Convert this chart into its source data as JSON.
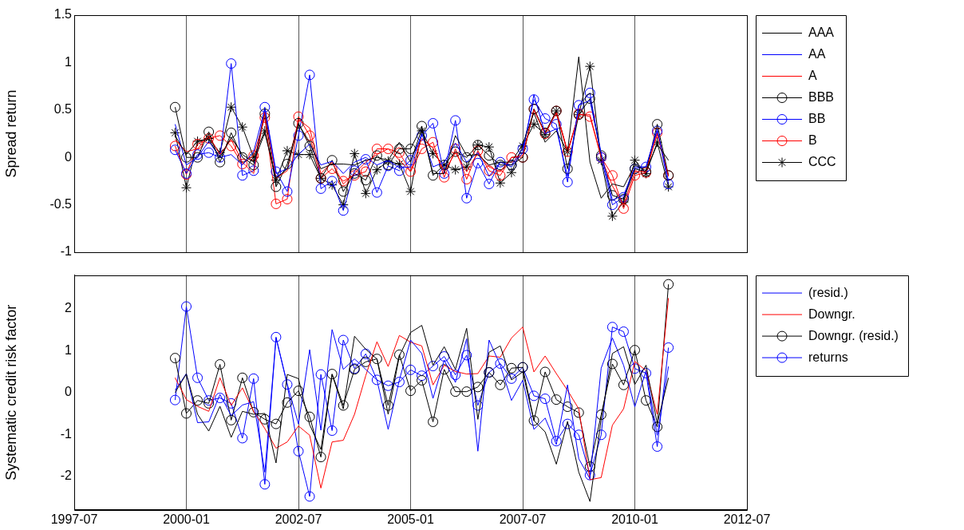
{
  "chart_data": [
    {
      "type": "line",
      "ylabel": "Spread return",
      "legend": "top right",
      "grid": "x",
      "tick_labels": "y",
      "x": [
        "1999-10",
        "2000-01",
        "2000-04",
        "2000-07",
        "2000-10",
        "2001-01",
        "2001-04",
        "2001-07",
        "2001-10",
        "2002-01",
        "2002-04",
        "2002-07",
        "2002-10",
        "2003-01",
        "2003-04",
        "2003-07",
        "2003-10",
        "2004-01",
        "2004-04",
        "2004-07",
        "2004-10",
        "2005-01",
        "2005-04",
        "2005-07",
        "2005-10",
        "2006-01",
        "2006-04",
        "2006-07",
        "2006-10",
        "2007-01",
        "2007-04",
        "2007-07",
        "2007-10",
        "2008-01",
        "2008-04",
        "2008-07",
        "2008-10",
        "2009-01",
        "2009-04",
        "2009-07",
        "2009-10",
        "2010-01",
        "2010-04",
        "2010-07",
        "2010-10"
      ],
      "xlim": [
        "1997-07",
        "2012-07"
      ],
      "xticks": [
        "1997-07",
        "2000-01",
        "2002-07",
        "2005-01",
        "2007-07",
        "2010-01",
        "2012-07"
      ],
      "ylim": [
        -1,
        1.5
      ],
      "yticks": [
        -1,
        -0.5,
        0,
        0.5,
        1,
        1.5
      ],
      "series": [
        {
          "name": "AAA",
          "color": "#000000",
          "marker": "none",
          "values": [
            0.23,
            0.03,
            0.17,
            0.19,
            0,
            0.21,
            0.03,
            -0.05,
            0.26,
            -0.22,
            -0.12,
            0.35,
            0.16,
            -0.12,
            -0.07,
            -0.07,
            -0.08,
            -0.03,
            0,
            -0.03,
            0.16,
            -0.05,
            0.3,
            -0.17,
            -0.17,
            0.23,
            0.02,
            0.03,
            -0.08,
            -0.05,
            -0.05,
            0.14,
            0.47,
            0.16,
            0.28,
            0.06,
            1.06,
            -0.05,
            -0.43,
            -0.28,
            -0.31,
            -0.08,
            -0.14,
            0.14,
            -0.03
          ]
        },
        {
          "name": "AA",
          "color": "#0000ff",
          "marker": "none",
          "values": [
            0.35,
            -0.08,
            0,
            0.17,
            0,
            0.03,
            -0.08,
            0.06,
            0.51,
            -0.17,
            -0.12,
            0.03,
            0.14,
            -0.08,
            -0.04,
            -0.17,
            -0.05,
            0,
            -0.08,
            -0.03,
            -0.11,
            -0.1,
            0.25,
            -0.1,
            -0.05,
            0.15,
            -0.05,
            0.05,
            -0.2,
            -0.05,
            -0.1,
            0.05,
            0.66,
            0.25,
            0.3,
            -0.2,
            0.55,
            0.6,
            0.05,
            -0.45,
            -0.4,
            -0.1,
            -0.1,
            0.3,
            -0.25
          ]
        },
        {
          "name": "A",
          "color": "#ff0000",
          "marker": "none",
          "values": [
            0.19,
            0.06,
            0.09,
            0.23,
            0.03,
            0.19,
            -0.05,
            -0.17,
            0.48,
            -0.22,
            -0.14,
            0.4,
            0.31,
            -0.17,
            -0.05,
            -0.28,
            -0.17,
            -0.05,
            0.03,
            0.09,
            -0.03,
            -0.15,
            0.2,
            0.1,
            -0.15,
            0.05,
            -0.15,
            0.05,
            -0.1,
            -0.15,
            0,
            0.02,
            0.5,
            0.25,
            0.47,
            0.05,
            0.45,
            0.45,
            0,
            -0.3,
            -0.5,
            -0.15,
            -0.15,
            0.25,
            -0.2
          ]
        },
        {
          "name": "BBB",
          "color": "#000000",
          "marker": "circle",
          "values": [
            0.53,
            0,
            0,
            0.27,
            -0.05,
            0.26,
            0,
            -0.08,
            0.46,
            -0.31,
            -0.07,
            0.36,
            0.12,
            -0.22,
            -0.03,
            -0.36,
            -0.17,
            -0.24,
            0.02,
            -0.08,
            0.09,
            0.09,
            0.33,
            -0.19,
            -0.08,
            0.06,
            0,
            0.13,
            0.02,
            -0.08,
            -0.08,
            0,
            0.51,
            0.26,
            0.49,
            -0.12,
            0.45,
            0.62,
            0.02,
            -0.4,
            -0.44,
            -0.12,
            -0.15,
            0.35,
            -0.19
          ]
        },
        {
          "name": "BB",
          "color": "#0000ff",
          "marker": "circle",
          "values": [
            0.08,
            -0.17,
            0.03,
            0.05,
            0,
            0.99,
            -0.19,
            -0.14,
            0.53,
            -0.15,
            -0.36,
            0.23,
            0.87,
            -0.33,
            -0.25,
            -0.56,
            -0.14,
            -0.02,
            -0.37,
            -0.09,
            -0.14,
            -0.03,
            0.23,
            0.36,
            -0.17,
            0.39,
            -0.43,
            -0.06,
            -0.28,
            -0.05,
            -0.08,
            0.09,
            0.61,
            0.41,
            0.35,
            -0.26,
            0.55,
            0.68,
            0,
            -0.5,
            -0.42,
            -0.12,
            -0.1,
            0.28,
            -0.28
          ]
        },
        {
          "name": "B",
          "color": "#ff0000",
          "marker": "circle",
          "values": [
            0.12,
            -0.18,
            0.14,
            0.2,
            0.23,
            0.12,
            -0.07,
            0.02,
            0.42,
            -0.49,
            -0.44,
            0.43,
            0.23,
            -0.22,
            -0.12,
            -0.25,
            -0.19,
            -0.15,
            0.09,
            0.09,
            0.05,
            -0.15,
            0.09,
            0.16,
            -0.21,
            0.09,
            -0.23,
            0.07,
            -0.14,
            -0.19,
            0,
            0,
            0.51,
            0.25,
            0.49,
            0.06,
            0.46,
            0.43,
            0,
            -0.19,
            -0.54,
            -0.19,
            -0.16,
            0.26,
            -0.19
          ]
        },
        {
          "name": "CCC",
          "color": "#000000",
          "marker": "cross",
          "values": [
            0.26,
            -0.32,
            0.17,
            0.2,
            0.05,
            0.53,
            0.32,
            0,
            0.28,
            -0.24,
            0.07,
            0.03,
            0.03,
            -0.22,
            -0.29,
            -0.5,
            0.04,
            -0.38,
            -0.13,
            -0.04,
            -0.07,
            -0.36,
            0.28,
            0.04,
            -0.08,
            -0.13,
            -0.1,
            0.13,
            0.11,
            -0.27,
            -0.16,
            0.12,
            0.35,
            0.24,
            0.49,
            0.06,
            0.45,
            0.96,
            -0.03,
            -0.62,
            -0.47,
            -0.03,
            -0.17,
            0.16,
            -0.31
          ]
        }
      ]
    },
    {
      "type": "line",
      "ylabel": "Systematic credit risk factor",
      "legend": "top right",
      "grid": "x",
      "x": [
        "1999-10",
        "2000-01",
        "2000-04",
        "2000-07",
        "2000-10",
        "2001-01",
        "2001-04",
        "2001-07",
        "2001-10",
        "2002-01",
        "2002-04",
        "2002-07",
        "2002-10",
        "2003-01",
        "2003-04",
        "2003-07",
        "2003-10",
        "2004-01",
        "2004-04",
        "2004-07",
        "2004-10",
        "2005-01",
        "2005-04",
        "2005-07",
        "2005-10",
        "2006-01",
        "2006-04",
        "2006-07",
        "2006-10",
        "2007-01",
        "2007-04",
        "2007-07",
        "2007-10",
        "2008-01",
        "2008-04",
        "2008-07",
        "2008-10",
        "2009-01",
        "2009-04",
        "2009-07",
        "2009-10",
        "2010-01",
        "2010-04",
        "2010-07",
        "2010-10"
      ],
      "xlim": [
        "1997-07",
        "2012-07"
      ],
      "xticks": [
        "1997-07",
        "2000-01",
        "2002-07",
        "2005-01",
        "2007-07",
        "2010-01",
        "2012-07"
      ],
      "ylim": [
        -2.8,
        2.8
      ],
      "yticks": [
        -2,
        -1,
        0,
        1,
        2
      ],
      "series": [
        {
          "color": "#000000",
          "marker": "none",
          "values": [
            0,
            0.44,
            -0.52,
            -0.92,
            -0.33,
            -1.07,
            -0.45,
            -0.52,
            -0.5,
            -1.68,
            0.43,
            0.33,
            -0.77,
            -1.36,
            0.43,
            -0.39,
            1.34,
            1.03,
            0.8,
            -0.52,
            0.87,
            1.43,
            1.6,
            0.65,
            1.09,
            0.55,
            1.53,
            -0.64,
            0.96,
            1.11,
            0.3,
            0.49,
            -0.67,
            -0.94,
            -1.71,
            -0.69,
            -1.9,
            -2.6,
            -0.64,
            0.93,
            1.09,
            0.19,
            0.65,
            -0.74,
            0.35
          ]
        },
        {
          "name": "(resid.)",
          "color": "#0000ff",
          "marker": "none",
          "values": [
            0.05,
            0.45,
            -0.72,
            -0.7,
            -0.05,
            -0.55,
            -0.3,
            -0.22,
            -1.9,
            1.3,
            0.2,
            -0.75,
            1.02,
            -0.9,
            1.5,
            0.55,
            0.8,
            0.55,
            0.3,
            -0.88,
            0.3,
            1.25,
            0.93,
            -0.14,
            0.77,
            0.24,
            1.28,
            -1.4,
            1.25,
            0.65,
            -0.19,
            0.29,
            -0.88,
            -0.61,
            -1.24,
            0.18,
            -1.58,
            -2.06,
            0.58,
            1.3,
            0.65,
            -0.34,
            0.52,
            -1.02,
            0.62
          ]
        },
        {
          "name": "Downgr.",
          "color": "#ff0000",
          "marker": "none",
          "values": [
            0.35,
            -0.17,
            -0.33,
            -0.45,
            0.35,
            -0.31,
            0.11,
            -0.45,
            -0.86,
            -1.33,
            -1.18,
            -0.8,
            -1.02,
            -2.28,
            -1.18,
            -1.14,
            -0.52,
            0.4,
            1.21,
            0.62,
            1.36,
            1.2,
            1.11,
            0.18,
            0.65,
            0.5,
            0.44,
            0.45,
            0.87,
            0.84,
            1.3,
            1.56,
            0.49,
            0.87,
            0.45,
            0.05,
            -0.39,
            -2.08,
            -2.03,
            -0.78,
            -0.39,
            0.74,
            0.52,
            -0.52,
            2.25
          ]
        },
        {
          "name": "Downgr. (resid.)",
          "color": "#000000",
          "marker": "circle",
          "values": [
            0.82,
            -0.5,
            -0.19,
            -0.26,
            0.67,
            -0.66,
            0.35,
            -0.47,
            -0.64,
            -0.75,
            -0.24,
            0.04,
            -0.58,
            -1.54,
            0.44,
            -0.31,
            0.55,
            0.73,
            0.8,
            -0.31,
            0.9,
            0.04,
            0.29,
            -0.7,
            0.55,
            0.02,
            0.02,
            0.13,
            0.48,
            0.18,
            0.58,
            0.6,
            -0.67,
            0.49,
            -0.17,
            -0.34,
            -0.48,
            -1.77,
            -0.53,
            0.68,
            0.18,
            1.01,
            -0.19,
            -0.82,
            2.58
          ]
        },
        {
          "name": "returns",
          "color": "#0000ff",
          "marker": "circle",
          "values": [
            -0.18,
            2.05,
            0.35,
            -0.19,
            -0.13,
            -0.26,
            -1.09,
            0.33,
            -2.19,
            1.32,
            0.19,
            -1.4,
            -2.48,
            0.43,
            -0.91,
            1.25,
            0.57,
            0.92,
            0.3,
            0.16,
            0.25,
            0.54,
            0.4,
            0.63,
            0.86,
            0.42,
            0.89,
            -0.31,
            0.48,
            0.69,
            0.33,
            0.6,
            -0.08,
            -0.15,
            -1.16,
            -0.75,
            -1.01,
            -1.97,
            -1.01,
            1.56,
            1.45,
            0.57,
            0.46,
            -1.29,
            1.07
          ]
        }
      ]
    }
  ]
}
